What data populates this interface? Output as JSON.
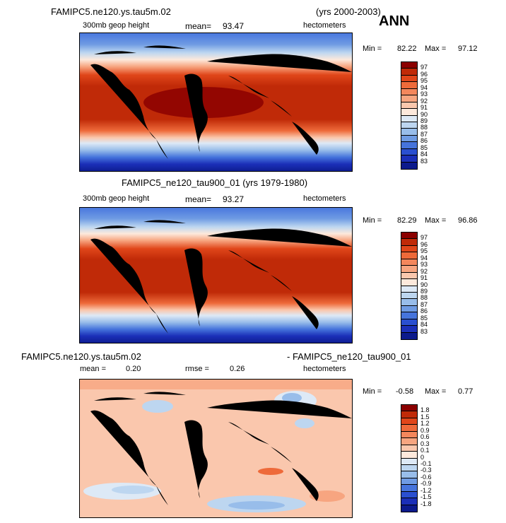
{
  "header": {
    "case_top": "FAMIPC5.ne120.ys.tau5m.02",
    "years_top": "(yrs 2000-2003)",
    "season": "ANN"
  },
  "panels": [
    {
      "variable": "300mb geop height",
      "mean_label": "mean=",
      "mean_value": "93.47",
      "units": "hectometers",
      "min_label": "Min =",
      "min_value": "82.22",
      "max_label": "Max =",
      "max_value": "97.12",
      "colorbar_levels": [
        "97",
        "96",
        "95",
        "94",
        "93",
        "92",
        "91",
        "90",
        "89",
        "88",
        "87",
        "86",
        "85",
        "84",
        "83"
      ],
      "colorbar_colors": [
        "#8b0000",
        "#c02a08",
        "#e0461a",
        "#ee6a3a",
        "#f4875c",
        "#f7a580",
        "#fac7ad",
        "#fde9dc",
        "#dde9f6",
        "#bdd6f0",
        "#98bdea",
        "#6f9be3",
        "#4674dc",
        "#2a4fd0",
        "#1b2fb8",
        "#0c1a8c"
      ]
    },
    {
      "title": "FAMIPC5_ne120_tau900_01 (yrs 1979-1980)",
      "variable": "300mb geop height",
      "mean_label": "mean=",
      "mean_value": "93.27",
      "units": "hectometers",
      "min_label": "Min =",
      "min_value": "82.29",
      "max_label": "Max =",
      "max_value": "96.86",
      "colorbar_levels": [
        "97",
        "96",
        "95",
        "94",
        "93",
        "92",
        "91",
        "90",
        "89",
        "88",
        "87",
        "86",
        "85",
        "84",
        "83"
      ],
      "colorbar_colors": [
        "#8b0000",
        "#c02a08",
        "#e0461a",
        "#ee6a3a",
        "#f4875c",
        "#f7a580",
        "#fac7ad",
        "#fde9dc",
        "#dde9f6",
        "#bdd6f0",
        "#98bdea",
        "#6f9be3",
        "#4674dc",
        "#2a4fd0",
        "#1b2fb8",
        "#0c1a8c"
      ]
    },
    {
      "title_left": "FAMIPC5.ne120.ys.tau5m.02",
      "title_right": "- FAMIPC5_ne120_tau900_01",
      "mean_label": "mean =",
      "mean_value": "0.20",
      "rmse_label": "rmse =",
      "rmse_value": "0.26",
      "units": "hectometers",
      "min_label": "Min =",
      "min_value": "-0.58",
      "max_label": "Max =",
      "max_value": "0.77",
      "colorbar_levels": [
        "1.8",
        "1.5",
        "1.2",
        "0.9",
        "0.6",
        "0.3",
        "0.1",
        "0",
        "-0.1",
        "-0.3",
        "-0.6",
        "-0.9",
        "-1.2",
        "-1.5",
        "-1.8"
      ],
      "colorbar_colors": [
        "#8b0000",
        "#c02a08",
        "#e0461a",
        "#ee6a3a",
        "#f4875c",
        "#f7a580",
        "#fac7ad",
        "#fde9dc",
        "#dde9f6",
        "#bdd6f0",
        "#98bdea",
        "#6f9be3",
        "#4674dc",
        "#2a4fd0",
        "#1b2fb8",
        "#0c1a8c"
      ]
    }
  ]
}
